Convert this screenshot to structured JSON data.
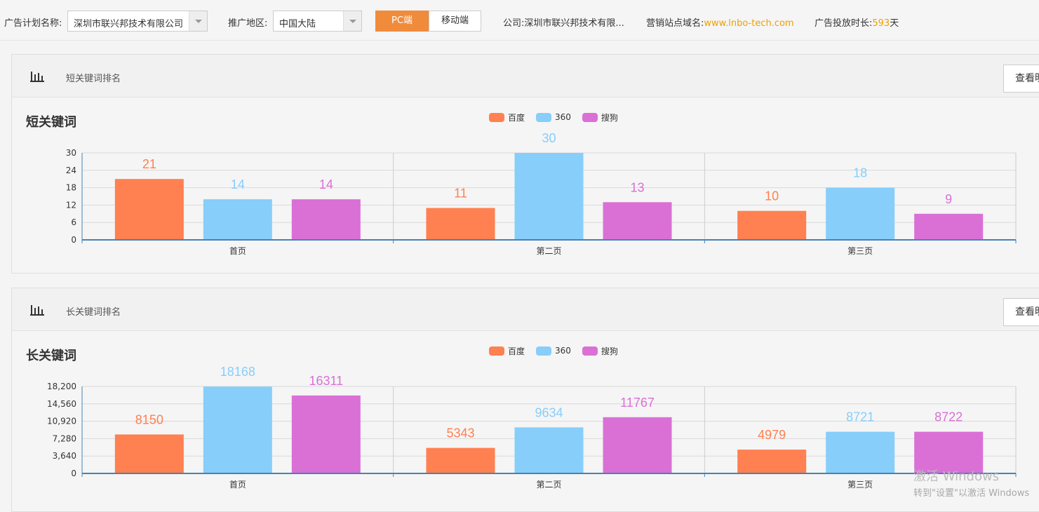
{
  "toolbar": {
    "plan_label": "广告计划名称:",
    "plan_value": "深圳市联兴邦技术有限公司",
    "region_label": "推广地区:",
    "region_value": "中国大陆",
    "pc_label": "PC端",
    "mobile_label": "移动端",
    "company_label": "公司:",
    "company_value": "深圳市联兴邦技术有限...",
    "domain_label": "营销站点域名:",
    "domain_value": "www.lnbo-tech.com",
    "duration_label": "广告投放时长:",
    "duration_value": "593",
    "duration_unit": "天"
  },
  "panels": [
    {
      "header_title": "短关键词排名",
      "detail_button": "查看明",
      "chart_title": "短关键词"
    },
    {
      "header_title": "长关键词排名",
      "detail_button": "查看明",
      "chart_title": "长关键词"
    }
  ],
  "legend": [
    "百度",
    "360",
    "搜狗"
  ],
  "colors": {
    "baidu": "#ff8050",
    "s360": "#87cefa",
    "sogou": "#da70d6",
    "accent": "#f08b3c",
    "axis": "#4682b4"
  },
  "chart_data": [
    {
      "type": "bar",
      "title": "短关键词",
      "categories": [
        "首页",
        "第二页",
        "第三页"
      ],
      "series": [
        {
          "name": "百度",
          "values": [
            21,
            11,
            10
          ]
        },
        {
          "name": "360",
          "values": [
            14,
            30,
            18
          ]
        },
        {
          "name": "搜狗",
          "values": [
            14,
            13,
            9
          ]
        }
      ],
      "yticks": [
        "0",
        "6",
        "12",
        "18",
        "24",
        "30"
      ],
      "ylim": [
        0,
        30
      ],
      "grid": true,
      "legend_position": "top"
    },
    {
      "type": "bar",
      "title": "长关键词",
      "categories": [
        "首页",
        "第二页",
        "第三页"
      ],
      "series": [
        {
          "name": "百度",
          "values": [
            8150,
            5343,
            4979
          ]
        },
        {
          "name": "360",
          "values": [
            18168,
            9634,
            8721
          ]
        },
        {
          "name": "搜狗",
          "values": [
            16311,
            11767,
            8722
          ]
        }
      ],
      "yticks": [
        "0",
        "3,640",
        "7,280",
        "10,920",
        "14,560",
        "18,200"
      ],
      "ylim": [
        0,
        18200
      ],
      "grid": true,
      "legend_position": "top"
    }
  ],
  "watermark": {
    "line1": "激活 Windows",
    "line2": "转到\"设置\"以激活 Windows"
  }
}
